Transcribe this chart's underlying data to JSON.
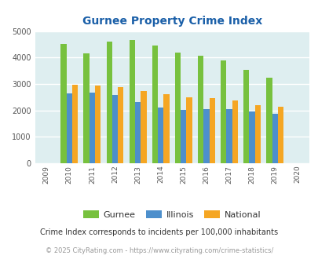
{
  "title": "Gurnee Property Crime Index",
  "years": [
    2009,
    2010,
    2011,
    2012,
    2013,
    2014,
    2015,
    2016,
    2017,
    2018,
    2019,
    2020
  ],
  "gurnee": [
    null,
    4500,
    4150,
    4600,
    4650,
    4440,
    4200,
    4080,
    3900,
    3530,
    3230,
    null
  ],
  "illinois": [
    null,
    2650,
    2680,
    2580,
    2300,
    2100,
    2020,
    2060,
    2040,
    1960,
    1860,
    null
  ],
  "national": [
    null,
    2960,
    2950,
    2890,
    2740,
    2620,
    2490,
    2470,
    2360,
    2200,
    2140,
    null
  ],
  "colors": {
    "gurnee": "#77c13e",
    "illinois": "#4d8fcc",
    "national": "#f5a623"
  },
  "bg_color": "#deeef0",
  "ylim": [
    0,
    5000
  ],
  "yticks": [
    0,
    1000,
    2000,
    3000,
    4000,
    5000
  ],
  "legend_labels": [
    "Gurnee",
    "Illinois",
    "National"
  ],
  "footnote1": "Crime Index corresponds to incidents per 100,000 inhabitants",
  "footnote2": "© 2025 CityRating.com - https://www.cityrating.com/crime-statistics/",
  "title_color": "#1a5fa8",
  "legend_text_color": "#333333",
  "footnote1_color": "#333333",
  "footnote2_color": "#999999"
}
